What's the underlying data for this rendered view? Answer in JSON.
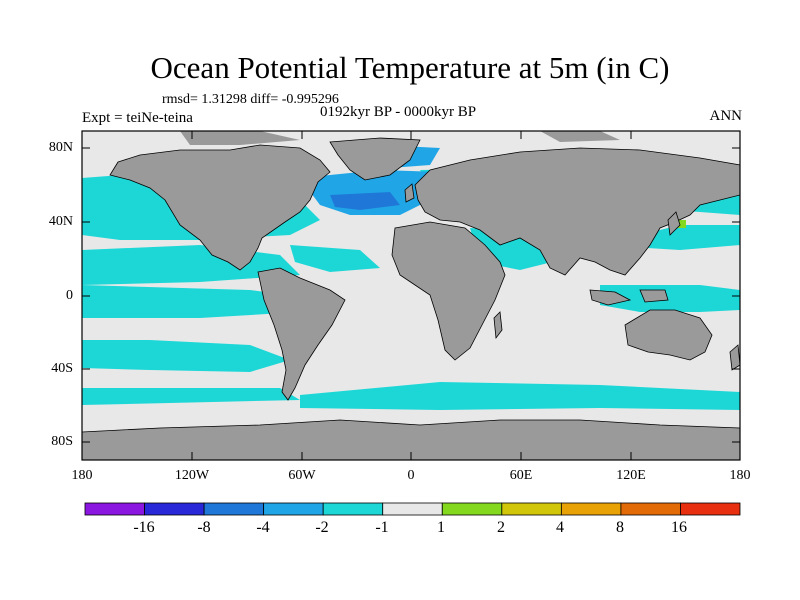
{
  "title": "Ocean Potential Temperature at 5m (in C)",
  "stats": "rmsd= 1.31298 diff= -0.995296",
  "experiment": "Expt = teiNe-teina",
  "period": "0192kyr BP - 0000kyr BP",
  "season": "ANN",
  "y_axis": {
    "ticks": [
      "80N",
      "40N",
      "0",
      "40S",
      "80S"
    ]
  },
  "x_axis": {
    "ticks": [
      "180",
      "120W",
      "60W",
      "0",
      "60E",
      "120E",
      "180"
    ]
  },
  "colorbar": {
    "labels": [
      "-16",
      "-8",
      "-4",
      "-2",
      "-1",
      "1",
      "2",
      "4",
      "8",
      "16"
    ],
    "colors": [
      "#8a16e0",
      "#2828d8",
      "#1f78d8",
      "#20a6e6",
      "#1dd7d7",
      "#e8e8e8",
      "#84d81e",
      "#d2c60a",
      "#e8a205",
      "#e26a07",
      "#e83010"
    ]
  },
  "colors": {
    "land": "#9a9a9a",
    "ocean_neutral": "#e8e8e8",
    "cool_cyan": "#1dd7d7",
    "cool_blue": "#20a6e6",
    "deep_blue": "#1f78d8",
    "warm_green": "#84d81e"
  }
}
